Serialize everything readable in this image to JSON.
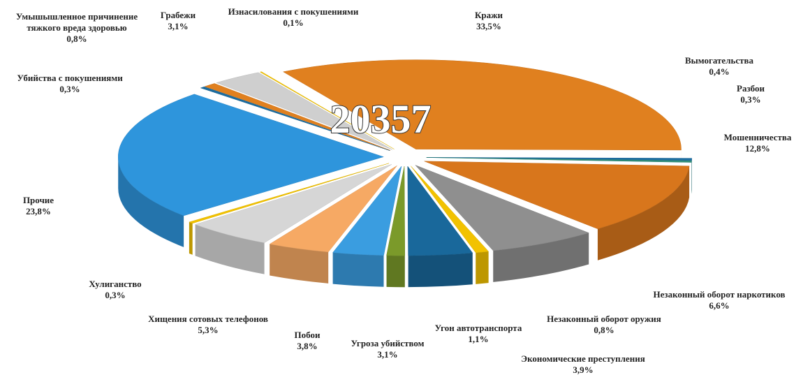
{
  "chart_data": {
    "type": "pie3d",
    "total_label": "20357",
    "categories": [
      "Кражи",
      "Вымогательства",
      "Разбои",
      "Мошенничества",
      "Незаконный оборот наркотиков",
      "Незаконный оборот оружия",
      "Экономические преступления",
      "Угон автотранспорта",
      "Угроза убийством",
      "Побои",
      "Хищения сотовых телефонов",
      "Хулиганство",
      "Прочие",
      "Убийства с покушениями",
      "Умышышленное причинение тяжкого вреда здоровью",
      "Грабежи",
      "Изнасилования с покушениями"
    ],
    "values": [
      33.5,
      0.4,
      0.3,
      12.8,
      6.6,
      0.8,
      3.9,
      1.1,
      3.1,
      3.8,
      5.3,
      0.3,
      23.8,
      0.3,
      0.8,
      3.1,
      0.1
    ],
    "value_labels": [
      "33,5%",
      "0,4%",
      "0,3%",
      "12,8%",
      "6,6%",
      "0,8%",
      "3,9%",
      "1,1%",
      "3,1%",
      "3,8%",
      "5,3%",
      "0,3%",
      "23,8%",
      "0,3%",
      "0,8%",
      "3,1%",
      "0,1%"
    ],
    "colors": [
      "#e0801f",
      "#1f6fa3",
      "#2f8f7a",
      "#d8761c",
      "#8f8f8f",
      "#f2c200",
      "#19689b",
      "#7b9a2a",
      "#3a9de0",
      "#f6a964",
      "#d6d6d6",
      "#f2c200",
      "#2e95dc",
      "#1b6c9f",
      "#e0801f",
      "#cfcfcf",
      "#f2c200"
    ]
  }
}
